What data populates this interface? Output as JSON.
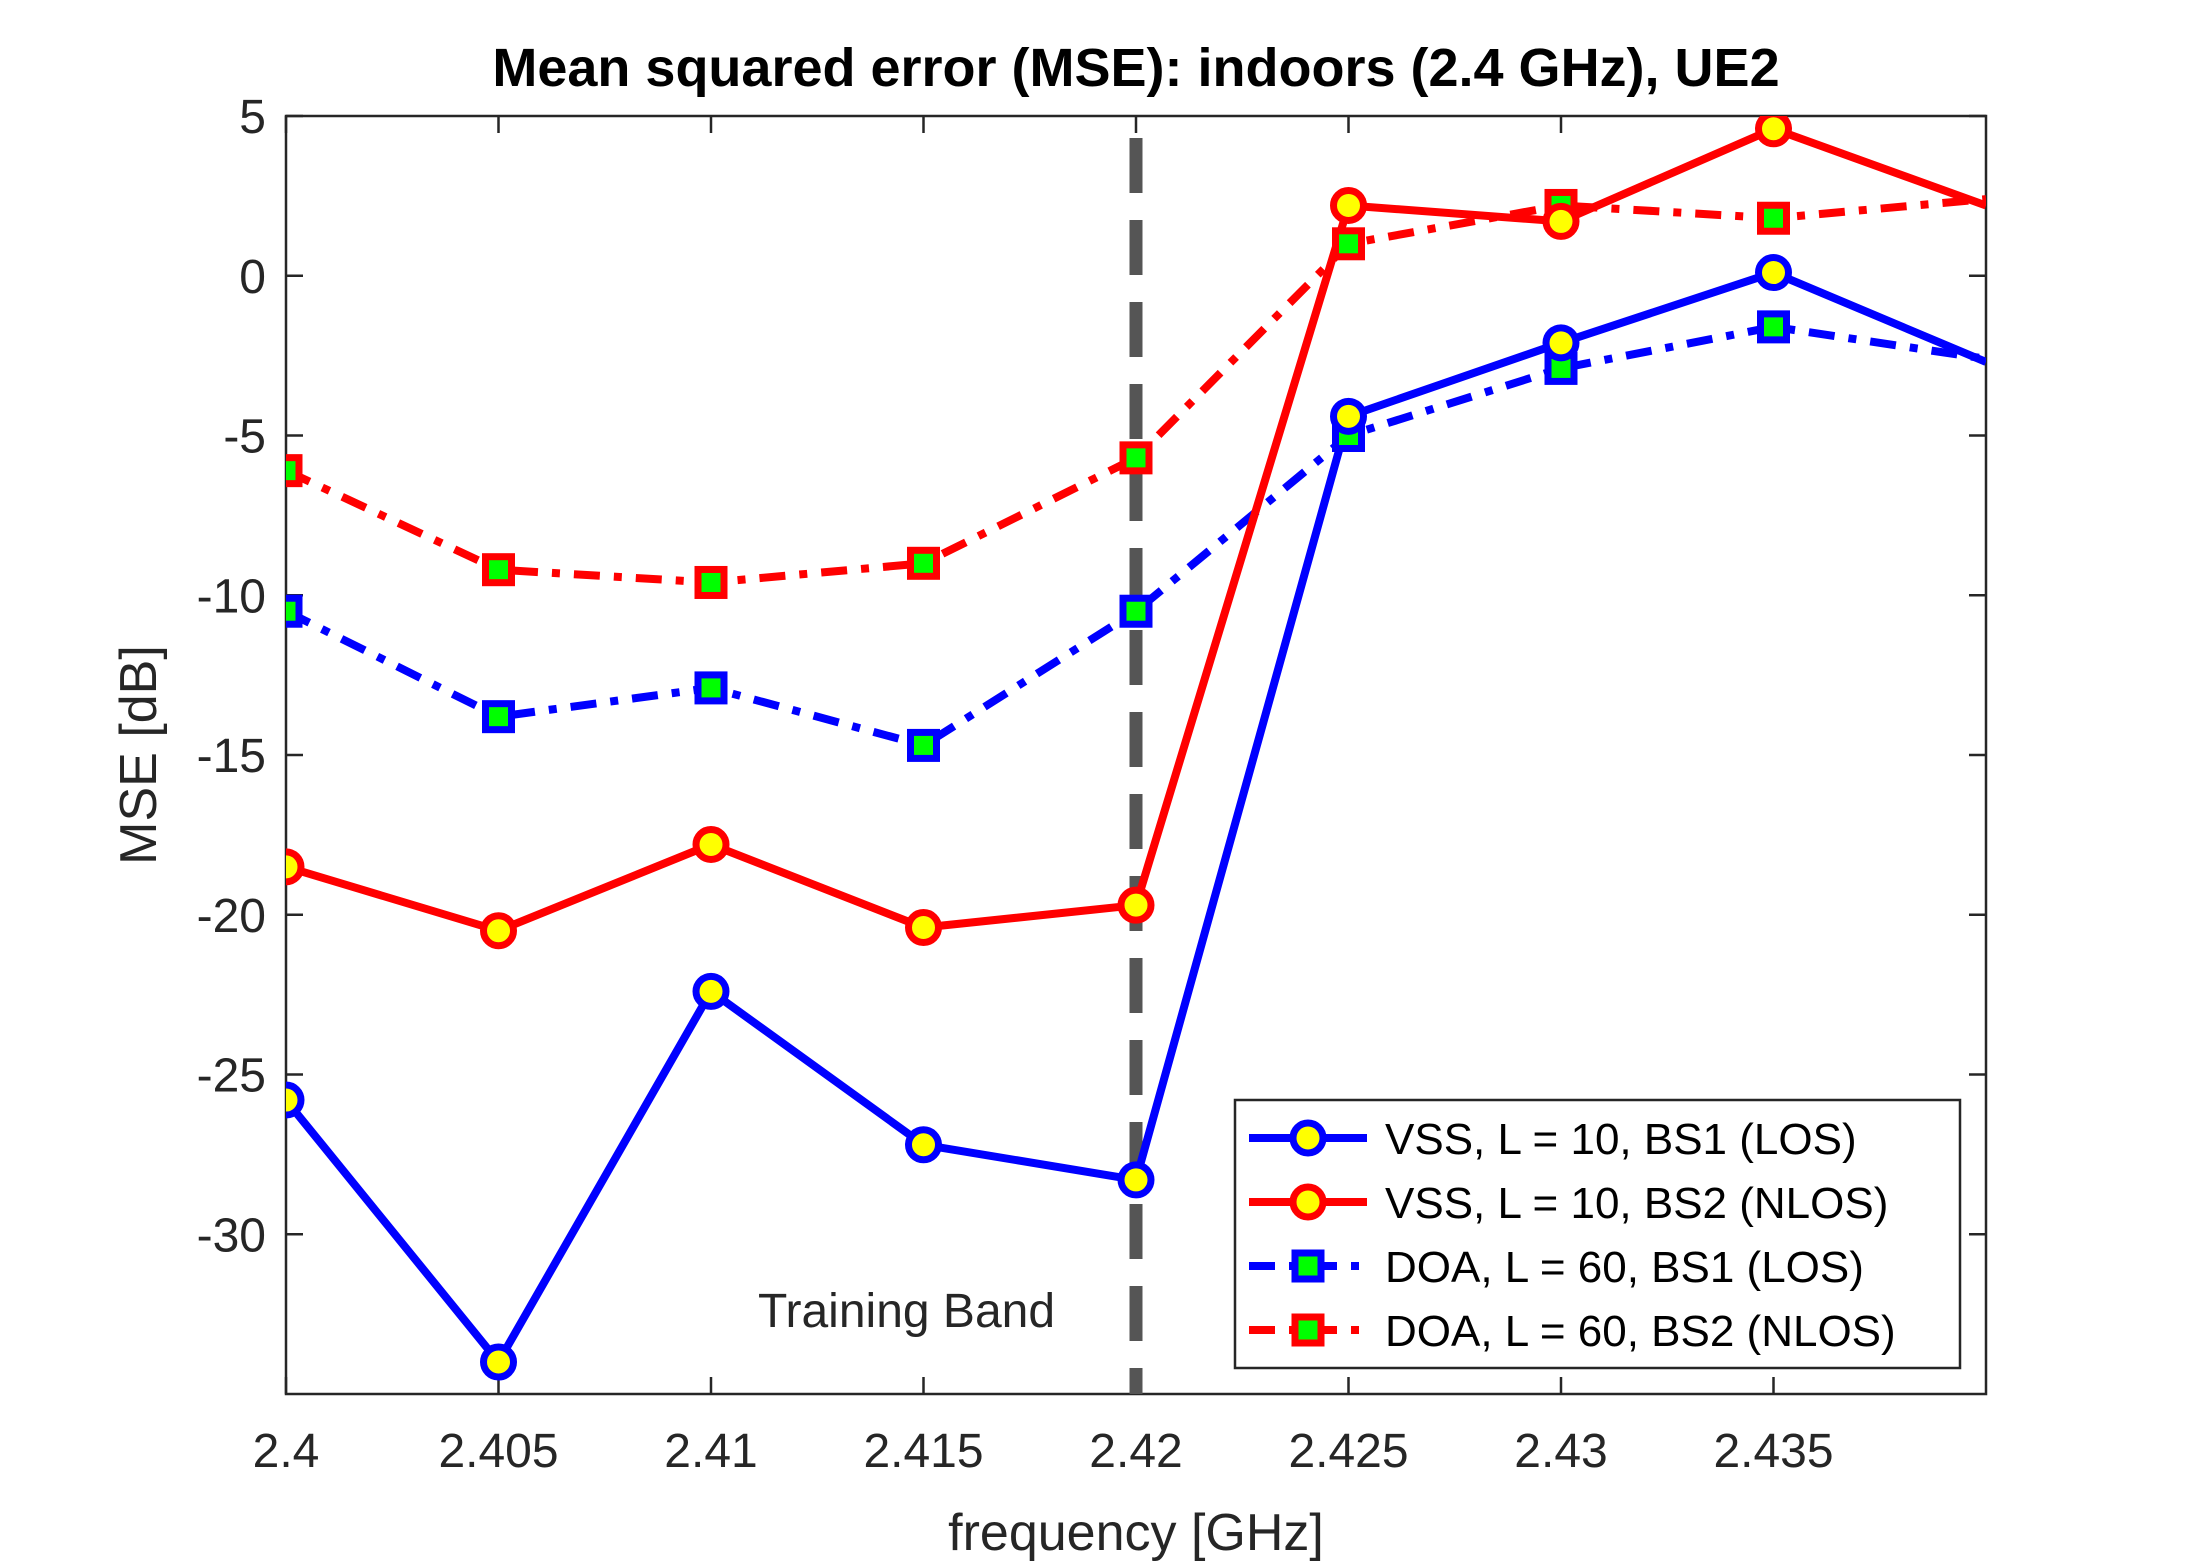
{
  "chart_data": {
    "type": "line",
    "title": "Mean squared error (MSE): indoors (2.4 GHz), UE2",
    "xlabel": "frequency [GHz]",
    "ylabel": "MSE [dB]",
    "xlim": [
      2.4,
      2.44
    ],
    "ylim": [
      -35,
      5
    ],
    "x_ticks": [
      2.4,
      2.405,
      2.41,
      2.415,
      2.42,
      2.425,
      2.43,
      2.435
    ],
    "x_tick_labels": [
      "2.4",
      "2.405",
      "2.41",
      "2.415",
      "2.42",
      "2.425",
      "2.43",
      "2.435"
    ],
    "y_ticks": [
      5,
      0,
      -5,
      -10,
      -15,
      -20,
      -25,
      -30
    ],
    "y_tick_labels": [
      "5",
      "0",
      "-5",
      "-10",
      "-15",
      "-20",
      "-25",
      "-30"
    ],
    "grid": false,
    "legend_position": "bottom-right",
    "x": [
      2.4,
      2.405,
      2.41,
      2.415,
      2.42,
      2.425,
      2.43,
      2.435,
      2.44
    ],
    "series": [
      {
        "name": "VSS, L = 10, BS1 (LOS)",
        "color": "#0000ff",
        "marker": "circle",
        "line_style": "solid",
        "values": [
          -25.8,
          -34.0,
          -22.4,
          -27.2,
          -28.3,
          -4.4,
          -2.1,
          0.1,
          -2.7
        ]
      },
      {
        "name": "VSS, L = 10, BS2 (NLOS)",
        "color": "#ff0000",
        "marker": "circle",
        "line_style": "solid",
        "values": [
          -18.5,
          -20.5,
          -17.8,
          -20.4,
          -19.7,
          2.2,
          1.7,
          4.6,
          2.2
        ]
      },
      {
        "name": "DOA, L = 60, BS1 (LOS)",
        "color": "#0000ff",
        "marker": "square",
        "line_style": "dashdot",
        "values": [
          -10.5,
          -13.8,
          -12.9,
          -14.7,
          -10.5,
          -5.0,
          -2.9,
          -1.6,
          -2.6
        ]
      },
      {
        "name": "DOA, L = 60, BS2 (NLOS)",
        "color": "#ff0000",
        "marker": "square",
        "line_style": "dashdot",
        "values": [
          -6.1,
          -9.2,
          -9.6,
          -9.0,
          -5.7,
          1.0,
          2.2,
          1.8,
          2.4
        ]
      }
    ],
    "annotations": [
      {
        "text": "Training Band",
        "x": 2.4146,
        "y": -32.4
      }
    ],
    "vertical_lines": [
      {
        "x": 2.42,
        "style": "dashed",
        "color": "#555555"
      }
    ],
    "marker_fill_color": {
      "circle": "#ffff00",
      "square": "#00ff00"
    }
  }
}
